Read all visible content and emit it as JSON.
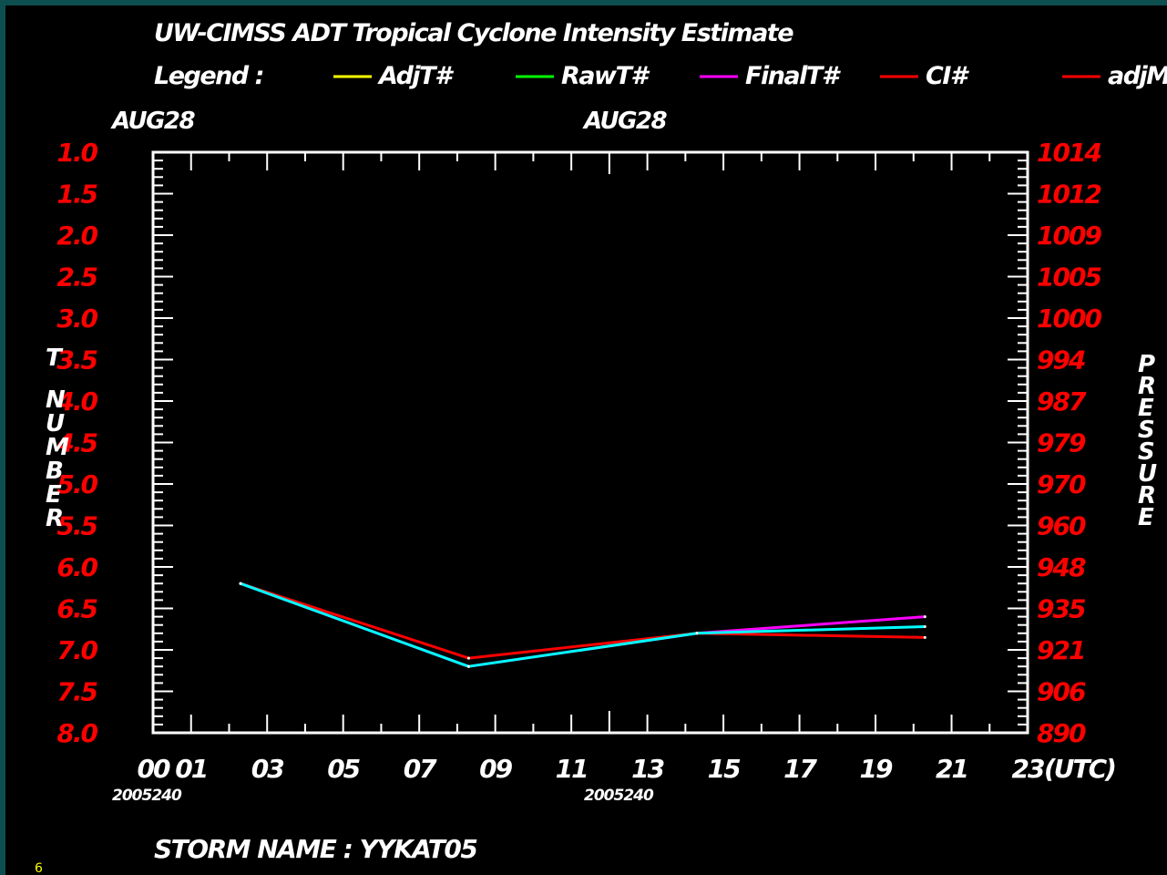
{
  "title": "UW-CIMSS ADT Tropical Cyclone Intensity Estimate",
  "legend_label": "Legend :",
  "date_top_left": "AUG28",
  "date_top_mid": "AUG28",
  "date_bottom_left": "2005240",
  "date_bottom_mid": "2005240",
  "utc_label": "(UTC)",
  "storm_name": "STORM NAME : YYKAT05",
  "corner_number": "6",
  "colors": {
    "adjT": "#ffff00",
    "rawT": "#00ff00",
    "finalT": "#ff00ff",
    "ci": "#ff0000",
    "adjMSLP": "#ff0000",
    "cyan_line": "#00ffff",
    "left_ticks": "#ff0000",
    "right_ticks": "#ff0000"
  },
  "chart_data": {
    "type": "line",
    "title": "UW-CIMSS ADT Tropical Cyclone Intensity Estimate",
    "xlabel": "(UTC)",
    "ylabel": "T NUMBER",
    "y2label": "PRESSURE",
    "xlim": [
      0,
      23
    ],
    "ylim": [
      8.0,
      1.0
    ],
    "y_inverted": true,
    "x_ticks": [
      "00",
      "01",
      "03",
      "05",
      "07",
      "09",
      "11",
      "13",
      "15",
      "17",
      "19",
      "21",
      "23"
    ],
    "y_ticks": [
      "1.0",
      "1.5",
      "2.0",
      "2.5",
      "3.0",
      "3.5",
      "4.0",
      "4.5",
      "5.0",
      "5.5",
      "6.0",
      "6.5",
      "7.0",
      "7.5",
      "8.0"
    ],
    "y2_ticks": [
      "1014",
      "1012",
      "1009",
      "1005",
      "1000",
      "994",
      "987",
      "979",
      "970",
      "960",
      "948",
      "935",
      "921",
      "906",
      "890"
    ],
    "legend": [
      {
        "name": "AdjT#",
        "color": "#ffff00"
      },
      {
        "name": "RawT#",
        "color": "#00ff00"
      },
      {
        "name": "FinalT#",
        "color": "#ff00ff"
      },
      {
        "name": "CI#",
        "color": "#ff0000"
      },
      {
        "name": "adjM",
        "color": "#ff0000"
      }
    ],
    "series": [
      {
        "name": "FinalT#",
        "color": "#ff00ff",
        "x": [
          2.3,
          8.3,
          14.3,
          20.3
        ],
        "y": [
          6.2,
          7.2,
          6.8,
          6.6
        ]
      },
      {
        "name": "CI#",
        "color": "#ff0000",
        "x": [
          2.3,
          8.3,
          14.3,
          20.3
        ],
        "y": [
          6.2,
          7.1,
          6.8,
          6.85
        ]
      },
      {
        "name": "",
        "color": "#00ffff",
        "x": [
          2.3,
          8.3,
          14.3,
          20.3
        ],
        "y": [
          6.2,
          7.2,
          6.8,
          6.72
        ]
      }
    ]
  }
}
